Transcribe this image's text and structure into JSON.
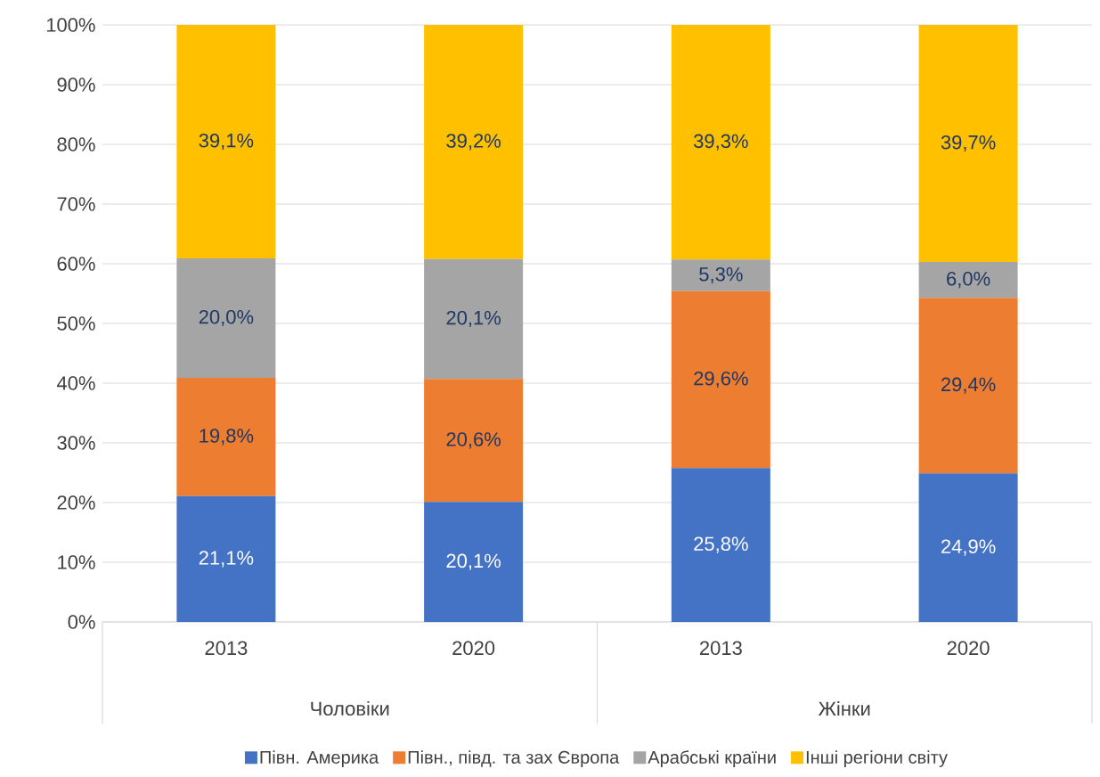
{
  "chart_data": {
    "type": "bar",
    "stacked": true,
    "categories": [
      "2013",
      "2020",
      "2013",
      "2020"
    ],
    "annotations": [
      "Чоловіки",
      "Жінки"
    ],
    "series": [
      {
        "name": "Півн. Америка",
        "color": "#4472c4",
        "values": [
          21.1,
          20.1,
          25.8,
          24.9
        ],
        "value_labels": [
          "21,1%",
          "20,1%",
          "25,8%",
          "24,9%"
        ]
      },
      {
        "name": "Півн., півд. та зах Європа",
        "color": "#ed7d31",
        "values": [
          19.8,
          20.6,
          29.6,
          29.4
        ],
        "value_labels": [
          "19,8%",
          "20,6%",
          "29,6%",
          "29,4%"
        ]
      },
      {
        "name": "Арабські країни",
        "color": "#a5a5a5",
        "values": [
          20.0,
          20.1,
          5.3,
          6.0
        ],
        "value_labels": [
          "20,0%",
          "20,1%",
          "5,3%",
          "6,0%"
        ]
      },
      {
        "name": "Інші регіони світу",
        "color": "#ffc000",
        "values": [
          39.1,
          39.2,
          39.3,
          39.7
        ],
        "value_labels": [
          "39,1%",
          "39,2%",
          "39,3%",
          "39,7%"
        ]
      }
    ],
    "ylim": [
      0,
      100
    ],
    "yticks": [
      {
        "value": 0,
        "label": "0%"
      },
      {
        "value": 10,
        "label": "10%"
      },
      {
        "value": 20,
        "label": "20%"
      },
      {
        "value": 30,
        "label": "30%"
      },
      {
        "value": 40,
        "label": "40%"
      },
      {
        "value": 50,
        "label": "50%"
      },
      {
        "value": 60,
        "label": "60%"
      },
      {
        "value": 70,
        "label": "70%"
      },
      {
        "value": 80,
        "label": "80%"
      },
      {
        "value": 90,
        "label": "90%"
      },
      {
        "value": 100,
        "label": "100%"
      }
    ],
    "grid": "y",
    "legend": "bottom"
  }
}
